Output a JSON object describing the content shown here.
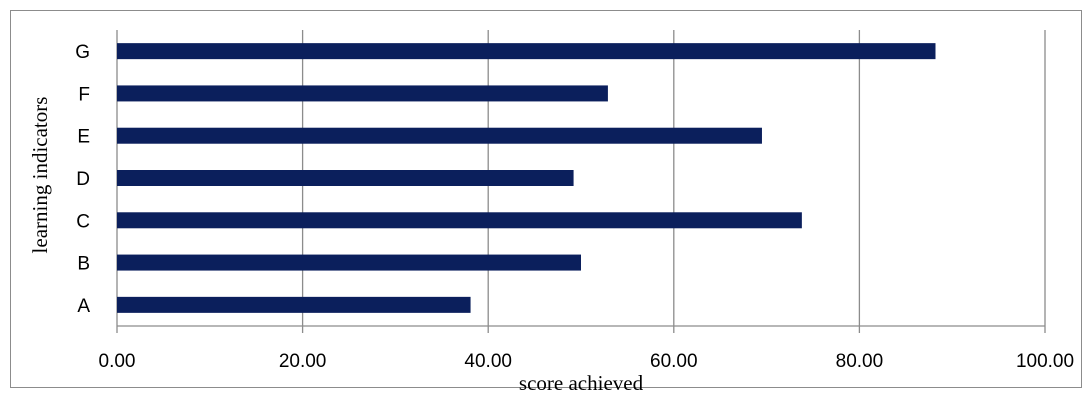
{
  "chart_data": {
    "type": "bar",
    "orientation": "horizontal",
    "categories": [
      "A",
      "B",
      "C",
      "D",
      "E",
      "F",
      "G"
    ],
    "values": [
      38.1,
      50.0,
      73.8,
      49.2,
      69.5,
      52.9,
      88.2
    ],
    "xlabel": "score achieved",
    "ylabel": "learning indicators",
    "xlim": [
      0,
      100
    ],
    "xticks": [
      "0.00",
      "20.00",
      "40.00",
      "60.00",
      "80.00",
      "100.00"
    ],
    "grid": true,
    "bar_color": "#0b1f5c",
    "grid_color": "#8c8c8c"
  }
}
